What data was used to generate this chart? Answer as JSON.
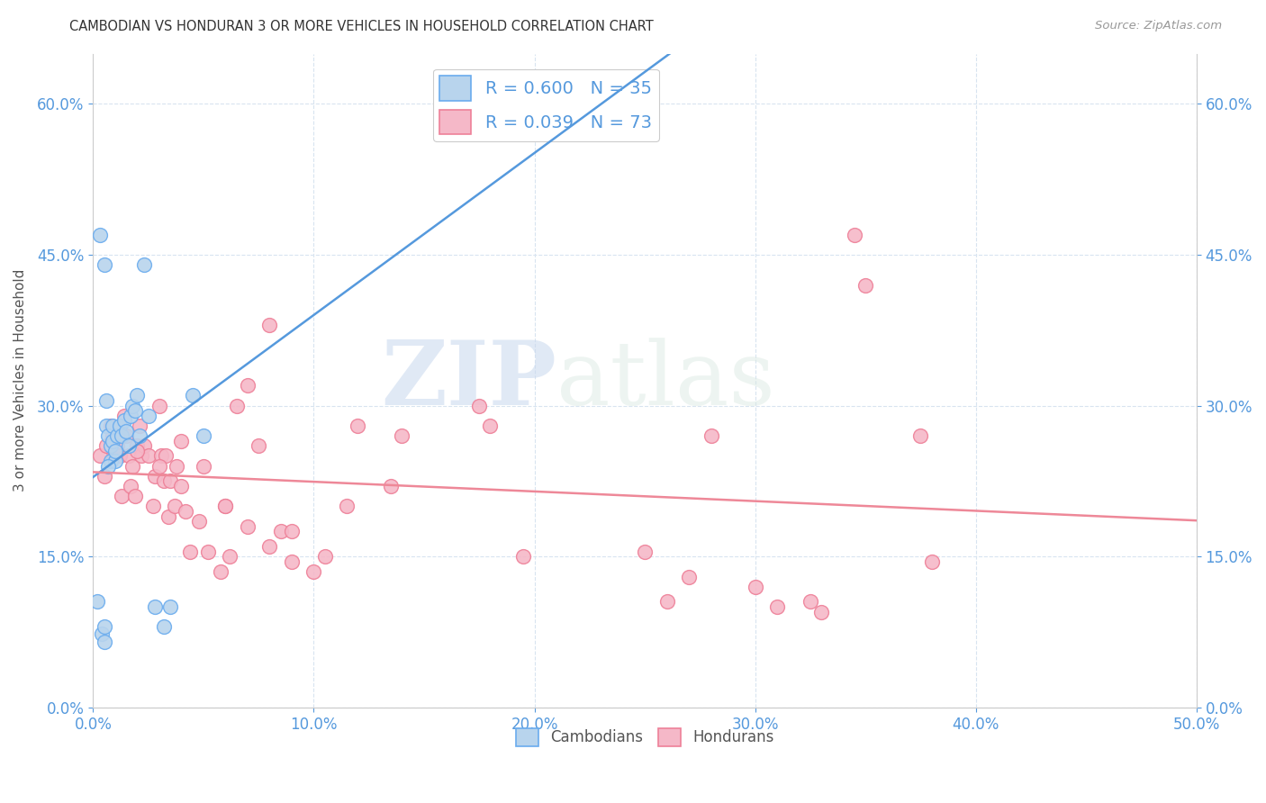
{
  "title": "CAMBODIAN VS HONDURAN 3 OR MORE VEHICLES IN HOUSEHOLD CORRELATION CHART",
  "source": "Source: ZipAtlas.com",
  "ylabel": "3 or more Vehicles in Household",
  "xlim": [
    0.0,
    50.0
  ],
  "ylim": [
    0.0,
    65.0
  ],
  "xticks": [
    0.0,
    10.0,
    20.0,
    30.0,
    40.0,
    50.0
  ],
  "xtick_labels": [
    "0.0%",
    "10.0%",
    "20.0%",
    "30.0%",
    "40.0%",
    "50.0%"
  ],
  "yticks": [
    0.0,
    15.0,
    30.0,
    45.0,
    60.0
  ],
  "ytick_labels": [
    "0.0%",
    "15.0%",
    "30.0%",
    "45.0%",
    "60.0%"
  ],
  "cambodian_color": "#b8d4ed",
  "honduran_color": "#f5b8c8",
  "cambodian_edge_color": "#6aacee",
  "honduran_edge_color": "#ee8098",
  "cambodian_line_color": "#5599dd",
  "honduran_line_color": "#ee8898",
  "tick_color": "#5599dd",
  "R_cambodian": 0.6,
  "N_cambodian": 35,
  "R_honduran": 0.039,
  "N_honduran": 73,
  "watermark_zip": "ZIP",
  "watermark_atlas": "atlas",
  "background_color": "#ffffff",
  "grid_color": "#d8e4f0",
  "title_color": "#333333",
  "source_color": "#999999",
  "ylabel_color": "#555555",
  "cambodian_x": [
    0.2,
    0.4,
    0.5,
    0.5,
    0.6,
    0.7,
    0.8,
    0.8,
    0.9,
    0.9,
    1.0,
    1.0,
    1.1,
    1.2,
    1.3,
    1.4,
    1.5,
    1.6,
    1.7,
    1.8,
    2.0,
    2.1,
    2.3,
    2.5,
    2.8,
    3.2,
    3.5,
    4.5,
    5.0,
    0.3,
    0.5,
    0.6,
    0.7,
    1.9,
    19.5
  ],
  "cambodian_y": [
    10.5,
    7.3,
    6.5,
    8.0,
    28.0,
    27.0,
    26.0,
    24.5,
    26.5,
    28.0,
    24.5,
    25.5,
    27.0,
    28.0,
    27.0,
    28.5,
    27.5,
    26.0,
    29.0,
    30.0,
    31.0,
    27.0,
    44.0,
    29.0,
    10.0,
    8.0,
    10.0,
    31.0,
    27.0,
    47.0,
    44.0,
    30.5,
    24.0,
    29.5,
    59.0
  ],
  "honduran_x": [
    0.3,
    0.5,
    0.6,
    0.8,
    0.9,
    1.0,
    1.1,
    1.2,
    1.3,
    1.4,
    1.5,
    1.6,
    1.7,
    1.8,
    1.9,
    2.0,
    2.1,
    2.2,
    2.3,
    2.5,
    2.7,
    2.8,
    3.0,
    3.1,
    3.2,
    3.3,
    3.4,
    3.5,
    3.7,
    3.8,
    4.0,
    4.2,
    4.4,
    4.8,
    5.2,
    5.8,
    6.0,
    6.2,
    6.5,
    7.0,
    7.5,
    8.0,
    8.5,
    9.0,
    10.0,
    10.5,
    11.5,
    12.0,
    13.5,
    14.0,
    17.5,
    18.0,
    19.5,
    25.0,
    26.0,
    27.0,
    28.0,
    30.0,
    31.0,
    32.5,
    33.0,
    34.5,
    35.0,
    37.5,
    38.0,
    2.0,
    3.0,
    4.0,
    5.0,
    6.0,
    7.0,
    8.0,
    9.0
  ],
  "honduran_y": [
    25.0,
    23.0,
    26.0,
    28.0,
    27.0,
    25.0,
    26.0,
    25.0,
    21.0,
    29.0,
    27.0,
    25.0,
    22.0,
    24.0,
    21.0,
    26.0,
    28.0,
    25.0,
    26.0,
    25.0,
    20.0,
    23.0,
    30.0,
    25.0,
    22.5,
    25.0,
    19.0,
    22.5,
    20.0,
    24.0,
    26.5,
    19.5,
    15.5,
    18.5,
    15.5,
    13.5,
    20.0,
    15.0,
    30.0,
    32.0,
    26.0,
    38.0,
    17.5,
    14.5,
    13.5,
    15.0,
    20.0,
    28.0,
    22.0,
    27.0,
    30.0,
    28.0,
    15.0,
    15.5,
    10.5,
    13.0,
    27.0,
    12.0,
    10.0,
    10.5,
    9.5,
    47.0,
    42.0,
    27.0,
    14.5,
    25.5,
    24.0,
    22.0,
    24.0,
    20.0,
    18.0,
    16.0,
    17.5
  ]
}
